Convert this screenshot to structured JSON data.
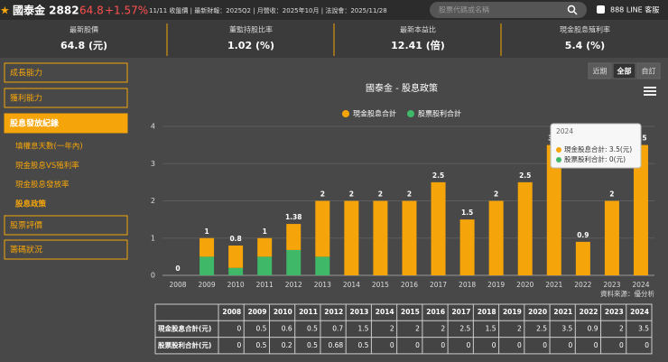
{
  "header": {
    "name": "國泰金 2882",
    "price": "64.8",
    "change": "+1.57%",
    "info": "11/11 收盤價 | 最新財報：2025Q2 | 月營收：2025年10月 | 法說會：2025/11/28",
    "search": "股票代碼或名稱",
    "line": "888 LINE 客服"
  },
  "stats": [
    {
      "label": "最新股價",
      "value": "64.8 (元)"
    },
    {
      "label": "董監持股比率",
      "value": "1.02 (%)"
    },
    {
      "label": "最新本益比",
      "value": "12.41 (倍)"
    },
    {
      "label": "現金股息殖利率",
      "value": "5.4 (%)"
    }
  ],
  "sidebar": {
    "top": [
      "成長能力",
      "獲利能力"
    ],
    "active": "股息發放紀錄",
    "sub": [
      "填權息天數(一年內)",
      "現金股息VS殖利率",
      "現金股息發放率",
      "股息政策"
    ],
    "bottom": [
      "股票評價",
      "籌碼狀況"
    ]
  },
  "buttons": [
    "近期",
    "全部",
    "自訂"
  ],
  "chart_data": {
    "type": "stacked-bar",
    "title": "國泰金 - 股息政策",
    "categories": [
      "2008",
      "2009",
      "2010",
      "2011",
      "2012",
      "2013",
      "2014",
      "2015",
      "2016",
      "2017",
      "2018",
      "2019",
      "2020",
      "2021",
      "2022",
      "2023",
      "2024"
    ],
    "series": [
      {
        "name": "現金股息合計",
        "color": "#f5a50a",
        "values": [
          0,
          0.5,
          0.6,
          0.5,
          0.7,
          1.5,
          2,
          2,
          2,
          2.5,
          1.5,
          2,
          2.5,
          3.5,
          0.9,
          2,
          3.5
        ]
      },
      {
        "name": "股票股利合計",
        "color": "#3fb868",
        "values": [
          0,
          0.5,
          0.2,
          0.5,
          0.68,
          0.5,
          0,
          0,
          0,
          0,
          0,
          0,
          0,
          0,
          0,
          0,
          0
        ]
      }
    ],
    "totals": [
      0,
      1,
      0.8,
      1,
      1.38,
      2,
      2,
      2,
      2,
      2.5,
      1.5,
      2,
      2.5,
      3.5,
      0.9,
      2,
      3.5
    ],
    "ylim": [
      0,
      4
    ],
    "yticks": [
      0,
      1,
      2,
      3,
      4
    ],
    "grid": true,
    "tooltip": {
      "title": "2024",
      "lines": [
        "現金股息合計: 3.5(元)",
        "股票股利合計: 0(元)"
      ]
    },
    "source": "資料來源：優分析"
  },
  "table_row_labels": [
    "現金股息合計(元)",
    "股票股利合計(元)"
  ]
}
